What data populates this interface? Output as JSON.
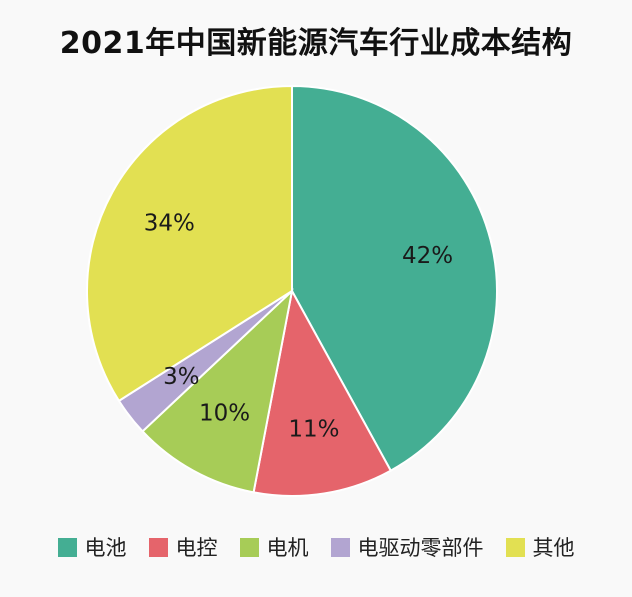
{
  "chart_data": {
    "type": "pie",
    "title": "2021年中国新能源汽车行业成本结构",
    "categories": [
      "电池",
      "电控",
      "电机",
      "电驱动零部件",
      "其他"
    ],
    "values": [
      42,
      11,
      10,
      3,
      34
    ],
    "labels": [
      "42%",
      "11%",
      "10%",
      "3%",
      "34%"
    ],
    "colors": [
      "#44ae93",
      "#e5646b",
      "#a7cc57",
      "#b2a5d1",
      "#e2e052"
    ],
    "legend_position": "bottom"
  }
}
